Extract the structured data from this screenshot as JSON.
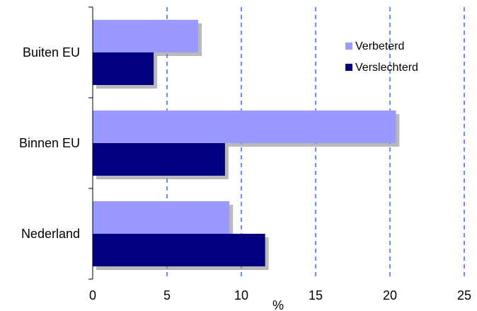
{
  "chart_data": {
    "type": "bar",
    "orientation": "horizontal",
    "categories": [
      "Buiten EU",
      "Binnen EU",
      "Nederland"
    ],
    "series": [
      {
        "name": "Verbeterd",
        "values": [
          7.1,
          20.4,
          9.2
        ],
        "color": "#9999ff"
      },
      {
        "name": "Verslechterd",
        "values": [
          4.1,
          8.9,
          11.6
        ],
        "color": "#000080"
      }
    ],
    "xlabel": "%",
    "xlim": [
      0,
      25
    ],
    "xticks": [
      0,
      5,
      10,
      15,
      20,
      25
    ],
    "grid": "vertical dashed",
    "grid_color": "#3366ff",
    "legend_position": "top-right"
  }
}
